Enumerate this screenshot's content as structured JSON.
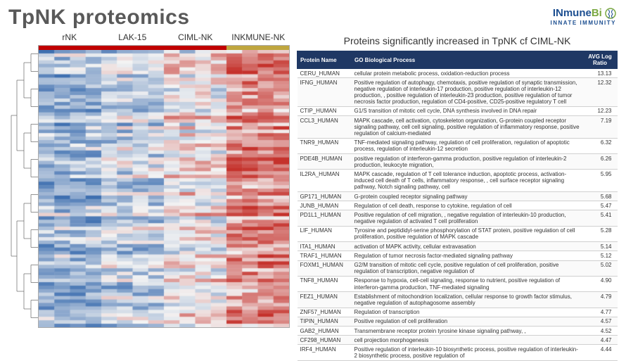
{
  "title": "TpNK proteomics",
  "logo": {
    "brand_pre": "INmune",
    "brand_post": "Bi",
    "sub": "INNATE IMMUNITY"
  },
  "heatmap": {
    "columns": [
      "rNK",
      "LAK-15",
      "CIML-NK",
      "INKMUNE-NK"
    ],
    "group_colors": [
      "#c00000",
      "#c00000",
      "#c00000",
      "#bfa63f"
    ],
    "n_rows": 80,
    "n_cols_per_group": 4,
    "colorscale": {
      "low": "#3e6fb0",
      "mid": "#f3f3f3",
      "high": "#c5322c"
    },
    "dendro_color": "#666666",
    "seed": 12345
  },
  "subtitle": "Proteins significantly increased in TpNK cf CIML-NK",
  "table": {
    "headers": [
      "Protein Name",
      "GO Biological Process",
      "AVG Log Ratio"
    ],
    "rows": [
      [
        "CERU_HUMAN",
        "cellular protein metabolic process, oxidation-reduction process",
        "13.13"
      ],
      [
        "IFNG_HUMAN",
        "Positive regulation of autophagy, chemotaxis, positive regulation of synaptic transmission, negative regulation of interleukin-17 production, positive regulation of interleukin-12 production, , positive regulation of interleukin-23 production, positive regulation of tumor necrosis factor production, regulation of CD4-positive, CD25-positive regulatory T cell",
        "12.32"
      ],
      [
        "CTIP_HUMAN",
        "G1/S transition of mitotic cell cycle, DNA synthesis involved in DNA repair",
        "12.23"
      ],
      [
        "CCL3_HUMAN",
        "MAPK cascade, cell activation, cytoskeleton organization, G-protein coupled receptor signaling pathway, cell cell signaling, positive regulation of inflammatory response, positive regulation of calcium-mediated",
        "7.19"
      ],
      [
        "TNR9_HUMAN",
        "TNF-mediated signaling pathway, regulation of cell proliferation, regulation of apoptotic process, regulation of interleukin-12 secretion",
        "6.32"
      ],
      [
        "PDE4B_HUMAN",
        "positive regulation of interferon-gamma production, positive regulation of interleukin-2 production, leukocyte migration,",
        "6.26"
      ],
      [
        "IL2RA_HUMAN",
        "MAPK cascade, regulation of T cell tolerance induction, apoptotic process, activation-induced cell death of T cells, inflammatory response, , cell surface receptor signaling pathway, Notch signaling pathway, cell",
        "5.95"
      ],
      [
        "GP171_HUMAN",
        "G-protein coupled receptor signaling pathway",
        "5.68"
      ],
      [
        "JUNB_HUMAN",
        "Regulation of cell death, response to cytokine, regulation of cell",
        "5.47"
      ],
      [
        "PD1L1_HUMAN",
        "Positive regulation of cell migration, , negative regulation of interleukin-10 production, negative regulation of activated T cell proliferation",
        "5.41"
      ],
      [
        "LIF_HUMAN",
        "Tyrosine and peptididyl-serine phosphorylation of STAT protein, positive regulation of cell proliferation, positive regulation of MAPK cascade",
        "5.28"
      ],
      [
        "ITA1_HUMAN",
        "activation of MAPK activity, cellular extravasation",
        "5.14"
      ],
      [
        "TRAF1_HUMAN",
        "Regulation of tumor necrosis factor-mediated signaling pathway",
        "5.12"
      ],
      [
        "FOXM1_HUMAN",
        "G2/M transition of mitotic cell cycle, positive regulation of cell proliferation, positive regulation of transcription, negative regulation of",
        "5.02"
      ],
      [
        "TNF8_HUMAN",
        "Response to hypoxia, cell-cell signaling, response to nutrient, positive regulation of interferon-gamma production, TNF-mediated signaling",
        "4.90"
      ],
      [
        "FEZ1_HUMAN",
        "Establishment of mitochondrion localization, cellular response to growth factor stimulus, negative regulation of autophagosome assembly",
        "4.79"
      ],
      [
        "ZNF57_HUMAN",
        "Regulation of transcription",
        "4.77"
      ],
      [
        "TIPIN_HUMAN",
        "Positive regulation of cell proliferation",
        "4.57"
      ],
      [
        "GAB2_HUMAN",
        "Transmembrane receptor protein tyrosine kinase signaling pathway, ,",
        "4.52"
      ],
      [
        "CF298_HUMAN",
        "cell projection morphogenesis",
        "4.47"
      ],
      [
        "IRF4_HUMAN",
        "Positive regulation of interleukin-10 biosynthetic process, positive regulation of interleukin-2 biosynthetic process, positive regulation of",
        "4.44"
      ]
    ]
  }
}
